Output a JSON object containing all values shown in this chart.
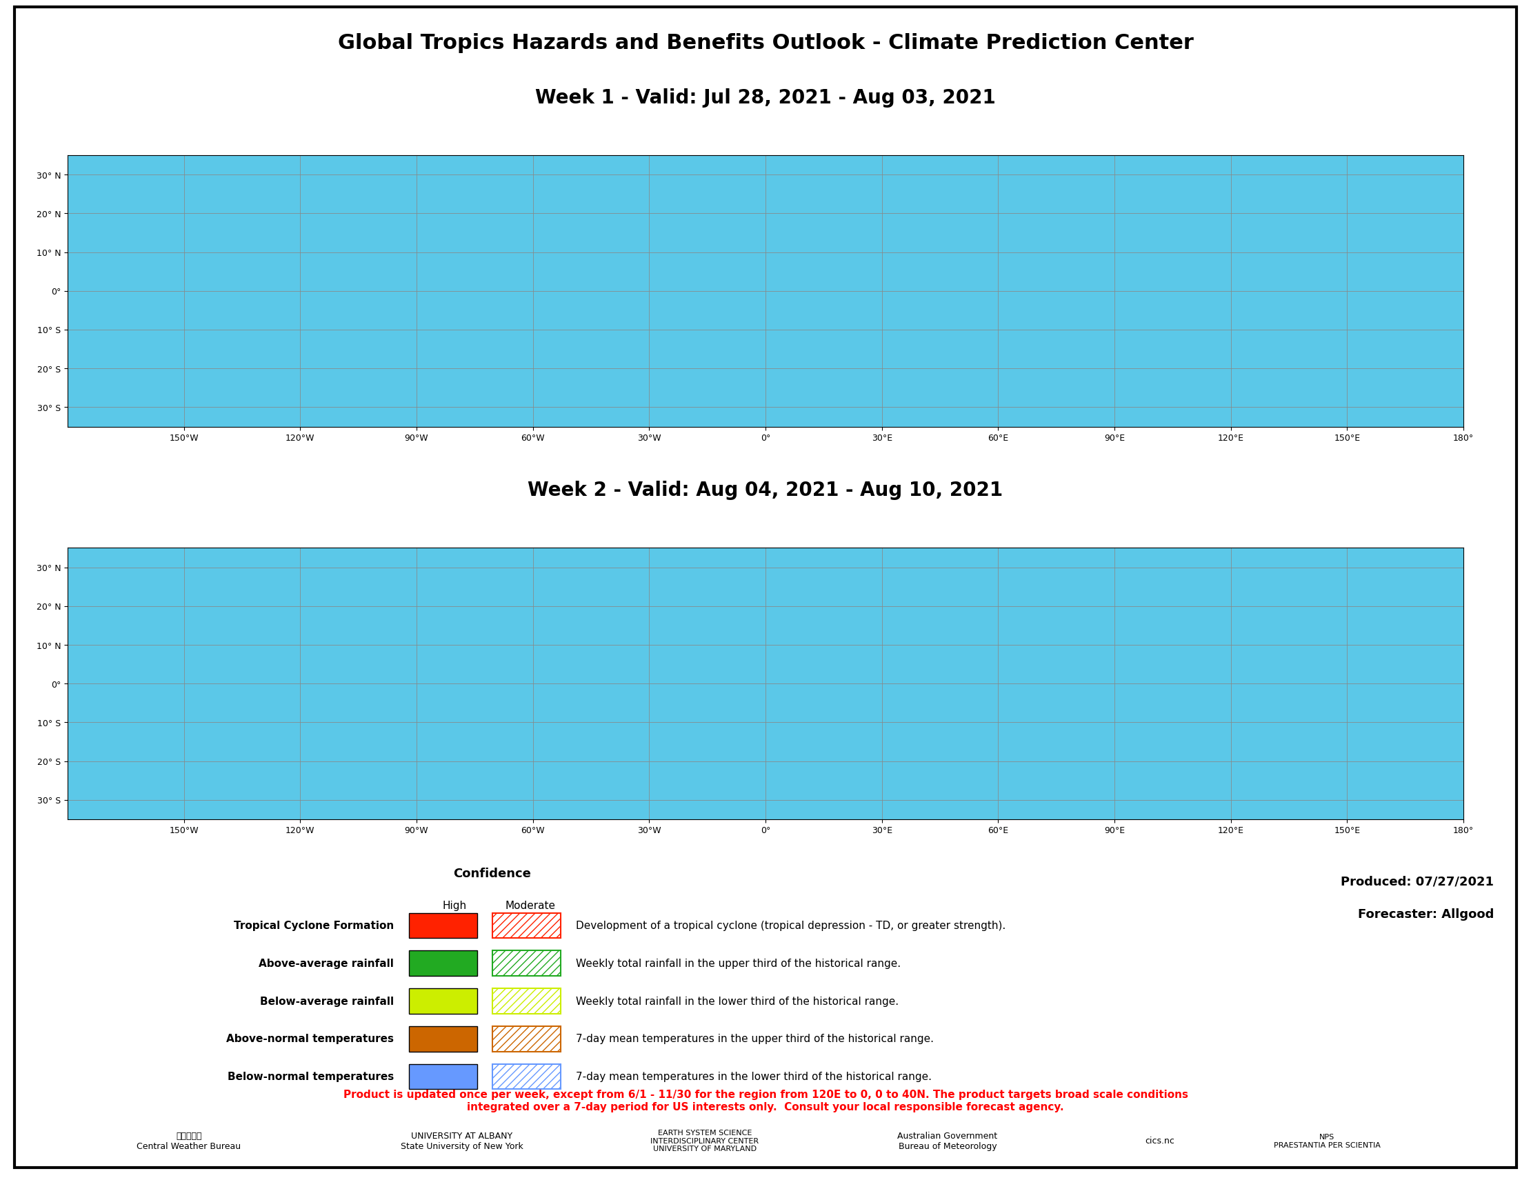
{
  "title": "Global Tropics Hazards and Benefits Outlook - Climate Prediction Center",
  "week1_title": "Week 1 - Valid: Jul 28, 2021 - Aug 03, 2021",
  "week2_title": "Week 2 - Valid: Aug 04, 2021 - Aug 10, 2021",
  "produced": "Produced: 07/27/2021",
  "forecaster": "Forecaster: Allgood",
  "title_fontsize": 22,
  "subtitle_fontsize": 20,
  "background_color": "#ffffff",
  "ocean_color": "#5bc8e8",
  "map_border_color": "#000000",
  "grid_color": "#888888",
  "confidence_label": "Confidence",
  "confidence_high": "High",
  "confidence_moderate": "Moderate",
  "legend_items": [
    {
      "label": "Tropical Cyclone Formation",
      "high_color": "#ff0000",
      "moderate_color": "#ff0000",
      "moderate_hatch": "///",
      "description": "Development of a tropical cyclone (tropical depression - TD, or greater strength)."
    },
    {
      "label": "Above-average rainfall",
      "high_color": "#00aa00",
      "moderate_color": "#00aa00",
      "moderate_hatch": "///",
      "description": "Weekly total rainfall in the upper third of the historical range."
    },
    {
      "label": "Below-average rainfall",
      "high_color": "#ccff00",
      "moderate_color": "#ccff00",
      "moderate_hatch": "///",
      "description": "Weekly total rainfall in the lower third of the historical range."
    },
    {
      "label": "Above-normal temperatures",
      "high_color": "#cc6600",
      "moderate_color": "#cc6600",
      "moderate_hatch": "///",
      "description": "7-day mean temperatures in the upper third of the historical range."
    },
    {
      "label": "Below-normal temperatures",
      "high_color": "#6699ff",
      "moderate_color": "#6699ff",
      "moderate_hatch": "///",
      "description": "7-day mean temperatures in the lower third of the historical range."
    }
  ],
  "disclaimer": "Product is updated once per week, except from 6/1 - 11/30 for the region from 120E to 0, 0 to 40N. The product targets broad scale conditions\nintegrated over a 7-day period for US interests only.  Consult your local responsible forecast agency.",
  "disclaimer_color": "#ff0000",
  "lon_ticks": [
    0,
    30,
    60,
    90,
    120,
    150,
    180,
    -150,
    -120,
    -90,
    -60,
    -30
  ],
  "lon_labels": [
    "0°",
    "30°E",
    "60°E",
    "90°E",
    "120°E",
    "150°E",
    "180°",
    "150°W",
    "120°W",
    "90°W",
    "60°W",
    "30°W"
  ],
  "lat_ticks": [
    30,
    20,
    10,
    0,
    -10,
    -20,
    -30
  ],
  "lat_labels": [
    "30° N",
    "20° N",
    "10° N",
    "0°",
    "10° S",
    "20° S",
    "30° S"
  ]
}
